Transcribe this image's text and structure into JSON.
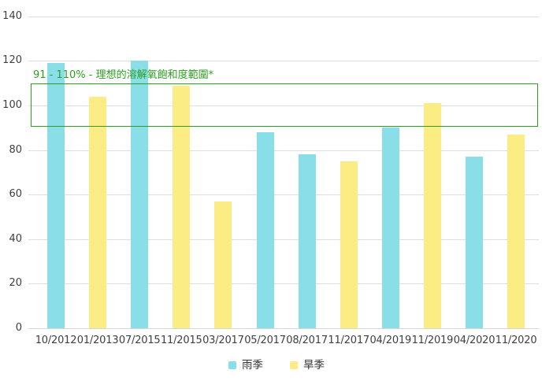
{
  "chart_data": {
    "type": "bar",
    "title": "",
    "xlabel": "",
    "ylabel": "",
    "categories": [
      "10/2012",
      "01/2013",
      "07/2015",
      "11/2015",
      "03/2017",
      "05/2017",
      "08/2017",
      "11/2017",
      "04/2019",
      "11/2019",
      "04/2020",
      "11/2020"
    ],
    "series": [
      {
        "name": "雨季",
        "color": "#8adee8",
        "values": [
          119,
          null,
          120,
          null,
          null,
          88,
          78,
          null,
          90,
          null,
          77,
          null
        ]
      },
      {
        "name": "旱季",
        "color": "#fcec84",
        "values": [
          null,
          104,
          null,
          109,
          57,
          null,
          null,
          75,
          null,
          101,
          null,
          87
        ]
      }
    ],
    "ylim": [
      0,
      140
    ],
    "yticks": [
      0,
      20,
      40,
      60,
      80,
      100,
      120,
      140
    ],
    "grid": true,
    "legend_position": "bottom",
    "annotation": {
      "label": "91 - 110% - 理想的溶解氧飽和度範圍*",
      "ymin": 91,
      "ymax": 110,
      "color": "#2e9e20"
    }
  }
}
